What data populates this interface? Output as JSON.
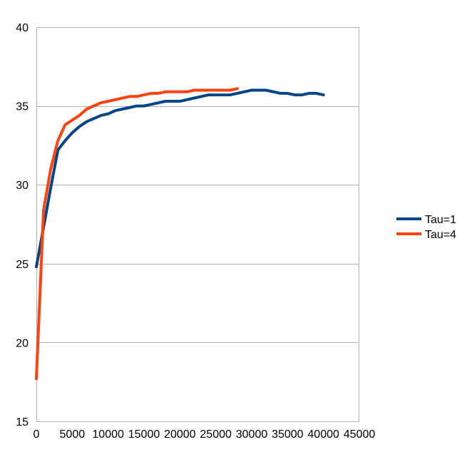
{
  "chart_data": {
    "type": "line",
    "title": "",
    "xlabel": "",
    "ylabel": "",
    "xlim": [
      0,
      45000
    ],
    "ylim": [
      15,
      40
    ],
    "x_ticks": [
      0,
      5000,
      10000,
      15000,
      20000,
      25000,
      30000,
      35000,
      40000,
      45000
    ],
    "y_ticks": [
      15,
      20,
      25,
      30,
      35,
      40
    ],
    "grid": true,
    "legend": "right",
    "series": [
      {
        "name": "Tau=1",
        "color": "#004586",
        "x": [
          0,
          1000,
          2000,
          3000,
          4000,
          5000,
          6000,
          7000,
          8000,
          9000,
          10000,
          11000,
          12000,
          13000,
          14000,
          15000,
          16000,
          17000,
          18000,
          19000,
          20000,
          21000,
          22000,
          23000,
          24000,
          25000,
          26000,
          27000,
          28000,
          29000,
          30000,
          31000,
          32000,
          33000,
          34000,
          35000,
          36000,
          37000,
          38000,
          39000,
          40000
        ],
        "values": [
          24.8,
          27.3,
          29.8,
          32.2,
          32.8,
          33.3,
          33.7,
          34.0,
          34.2,
          34.4,
          34.5,
          34.7,
          34.8,
          34.9,
          35.0,
          35.0,
          35.1,
          35.2,
          35.3,
          35.3,
          35.3,
          35.4,
          35.5,
          35.6,
          35.7,
          35.7,
          35.7,
          35.7,
          35.8,
          35.9,
          36.0,
          36.0,
          36.0,
          35.9,
          35.8,
          35.8,
          35.7,
          35.7,
          35.8,
          35.8,
          35.7
        ]
      },
      {
        "name": "Tau=4",
        "color": "#ff420e",
        "x": [
          0,
          1000,
          2000,
          3000,
          4000,
          5000,
          6000,
          7000,
          8000,
          9000,
          10000,
          11000,
          12000,
          13000,
          14000,
          15000,
          16000,
          17000,
          18000,
          19000,
          20000,
          21000,
          22000,
          23000,
          24000,
          25000,
          26000,
          27000,
          28000
        ],
        "values": [
          17.7,
          28.4,
          31.0,
          32.8,
          33.8,
          34.1,
          34.4,
          34.8,
          35.0,
          35.2,
          35.3,
          35.4,
          35.5,
          35.6,
          35.6,
          35.7,
          35.8,
          35.8,
          35.9,
          35.9,
          35.9,
          35.9,
          36.0,
          36.0,
          36.0,
          36.0,
          36.0,
          36.0,
          36.1
        ]
      }
    ]
  }
}
